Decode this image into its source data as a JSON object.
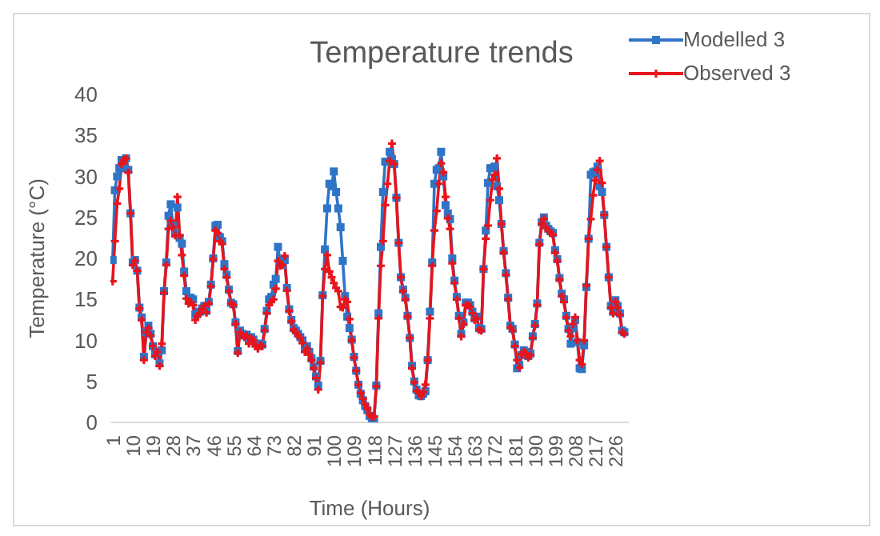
{
  "chart_data": {
    "type": "line",
    "title": "Temperature trends",
    "xlabel": "Time (Hours)",
    "ylabel": "Temperature (°C)",
    "x": [
      1,
      2,
      3,
      4,
      5,
      6,
      7,
      8,
      9,
      10,
      11,
      12,
      13,
      14,
      15,
      16,
      17,
      18,
      19,
      20,
      21,
      22,
      23,
      24,
      25,
      26,
      27,
      28,
      29,
      30,
      31,
      32,
      33,
      34,
      35,
      36,
      37,
      38,
      39,
      40,
      41,
      42,
      43,
      44,
      45,
      46,
      47,
      48,
      49,
      50,
      51,
      52,
      53,
      54,
      55,
      56,
      57,
      58,
      59,
      60,
      61,
      62,
      63,
      64,
      65,
      66,
      67,
      68,
      69,
      70,
      71,
      72,
      73,
      74,
      75,
      76,
      77,
      78,
      79,
      80,
      81,
      82,
      83,
      84,
      85,
      86,
      87,
      88,
      89,
      90,
      91,
      92,
      93,
      94,
      95,
      96,
      97,
      98,
      99,
      100,
      101,
      102,
      103,
      104,
      105,
      106,
      107,
      108,
      109,
      110,
      111,
      112,
      113,
      114,
      115,
      116,
      117,
      118,
      119,
      120,
      121,
      122,
      123,
      124,
      125,
      126,
      127,
      128,
      129,
      130,
      131,
      132,
      133,
      134,
      135,
      136,
      137,
      138,
      139,
      140,
      141,
      142,
      143,
      144,
      145,
      146,
      147,
      148,
      149,
      150,
      151,
      152,
      153,
      154,
      155,
      156,
      157,
      158,
      159,
      160,
      161,
      162,
      163,
      164,
      165,
      166,
      167,
      168,
      169,
      170,
      171,
      172,
      173,
      174,
      175,
      176,
      177,
      178,
      179,
      180,
      181,
      182,
      183,
      184,
      185,
      186,
      187,
      188,
      189,
      190,
      191,
      192,
      193,
      194,
      195,
      196,
      197,
      198,
      199,
      200,
      201,
      202,
      203,
      204,
      205,
      206,
      207,
      208,
      209,
      210,
      211,
      212,
      213,
      214,
      215,
      216,
      217,
      218,
      219,
      220,
      221,
      222,
      223,
      224,
      225,
      226,
      227,
      228,
      229,
      230
    ],
    "series": [
      {
        "name": "Modelled 3",
        "color": "#2e75c8",
        "marker": "square",
        "values": [
          19.8,
          28.3,
          30,
          31,
          32,
          31,
          32.2,
          30.8,
          25.5,
          19.5,
          19.8,
          18.5,
          14,
          12.8,
          8,
          11,
          11.8,
          10.8,
          9.3,
          8.3,
          8.6,
          7.2,
          8.8,
          16,
          19.5,
          25.2,
          26.6,
          24,
          23,
          26.2,
          22.5,
          21.8,
          18.4,
          16,
          15.2,
          15.2,
          15,
          13.2,
          13.2,
          13.5,
          13.9,
          14.2,
          13.6,
          14.7,
          16.8,
          20,
          24,
          24.1,
          22.6,
          22.1,
          19.3,
          18,
          16.2,
          14.6,
          14.4,
          12.2,
          8.7,
          11.2,
          10.8,
          10.6,
          10.7,
          10,
          10.4,
          10.1,
          9.6,
          9.3,
          9.6,
          9.5,
          11.4,
          13.6,
          15,
          15.3,
          16.8,
          17.5,
          21.4,
          19.5,
          19.2,
          19.8,
          16.4,
          13.8,
          12.5,
          11.5,
          11.2,
          10.8,
          10.4,
          10,
          9,
          9.3,
          8.6,
          7.8,
          6.8,
          5.6,
          4.5,
          7.5,
          15.5,
          21.1,
          26.1,
          29.1,
          28.8,
          30.6,
          28.1,
          26.1,
          23.8,
          19.7,
          15.4,
          12.9,
          11.5,
          10.1,
          8,
          6.3,
          4.6,
          3.5,
          2.7,
          2,
          1.5,
          0.8,
          0.5,
          0.4,
          4.5,
          13.3,
          21.4,
          28.1,
          31.8,
          31.8,
          33,
          32.1,
          31.5,
          27.4,
          21.9,
          17.7,
          16.2,
          15.2,
          13,
          10.3,
          6.9,
          5,
          4,
          3.3,
          3.2,
          3.5,
          3.8,
          7.6,
          13.5,
          19.5,
          29.1,
          30.8,
          31,
          33,
          30,
          26.5,
          25.5,
          24.8,
          20,
          17.3,
          15.3,
          13,
          10.8,
          12.2,
          14.6,
          14.6,
          14.3,
          13.5,
          12.7,
          12.9,
          11.5,
          11.4,
          18.7,
          23.4,
          29.2,
          31,
          31,
          31.2,
          28.8,
          27.1,
          24.2,
          20.9,
          18.2,
          15.2,
          11.8,
          11.4,
          9.5,
          6.6,
          7,
          8.2,
          8.8,
          8.6,
          8.1,
          8.4,
          10.5,
          12,
          14.5,
          21.9,
          24.4,
          25,
          24,
          23.6,
          23.3,
          23.1,
          21,
          19.9,
          17.6,
          15.7,
          15,
          13,
          11.4,
          9.6,
          11.5,
          12.5,
          9.8,
          6.6,
          6.5,
          9.4,
          16.5,
          22.4,
          30.2,
          30.5,
          30.6,
          31.2,
          28.8,
          28.1,
          25.3,
          21.4,
          17.7,
          14.2,
          13.5,
          14.9,
          14.2,
          13.3,
          11.2,
          11
        ]
      },
      {
        "name": "Observed 3",
        "color": "#e8141c",
        "marker": "cross",
        "values": [
          17.2,
          22.1,
          26.7,
          28.5,
          31.5,
          32,
          32.2,
          30.5,
          25.5,
          19.2,
          19.7,
          18.5,
          13.9,
          12.5,
          7.6,
          11,
          11.5,
          10.6,
          9.3,
          8.1,
          8.6,
          6.9,
          9.6,
          15.8,
          19.2,
          23.6,
          24.6,
          23.8,
          22.8,
          27.5,
          22.8,
          20.4,
          17.9,
          15.1,
          14.5,
          14.7,
          14.3,
          12.5,
          13,
          13.3,
          13.8,
          14.2,
          13.4,
          14.5,
          16.6,
          19.9,
          23.4,
          23.1,
          22.1,
          21.8,
          18.7,
          17.7,
          16,
          14.5,
          14.3,
          12,
          8.5,
          11,
          10.6,
          10.4,
          10.6,
          9.6,
          10.2,
          10,
          9.3,
          9,
          9.4,
          9.3,
          11.2,
          13.3,
          14.3,
          14.7,
          15,
          16.3,
          19.7,
          19.1,
          19.2,
          20.3,
          16.1,
          13.6,
          12.3,
          11.3,
          11,
          10.6,
          10.3,
          9.7,
          8.6,
          9,
          8.3,
          7.6,
          6.6,
          5.4,
          4,
          7.3,
          15.4,
          18.7,
          20.4,
          18.4,
          17.7,
          17,
          16.4,
          16,
          14.1,
          14,
          15,
          14.7,
          12.6,
          10,
          7.9,
          6.3,
          4.6,
          3.6,
          2.9,
          2.2,
          1.7,
          1,
          0.7,
          0.7,
          4.4,
          12.7,
          19.1,
          22.1,
          26.5,
          29.1,
          31.9,
          34,
          31.5,
          27.4,
          21.9,
          17.7,
          16,
          15,
          12.9,
          10.3,
          6.6,
          4.9,
          3.9,
          3.6,
          3.2,
          3.7,
          4.6,
          7.6,
          12.7,
          19.1,
          23.4,
          25.8,
          29.1,
          31.6,
          30.5,
          27.5,
          24.9,
          23.6,
          19.4,
          17,
          15,
          12.7,
          10.5,
          12,
          14.3,
          14.3,
          14.1,
          13.3,
          12.5,
          12.7,
          11.3,
          11.2,
          18.7,
          22.4,
          24,
          27.1,
          29.6,
          30.2,
          32.2,
          28.5,
          24.2,
          20.7,
          18,
          15,
          11.6,
          11.2,
          9.3,
          7.6,
          6.7,
          8.3,
          8.6,
          8.4,
          7.9,
          8.2,
          10.3,
          11.8,
          14.3,
          21.7,
          24.2,
          24.8,
          23.8,
          23.4,
          23.1,
          22.9,
          20.7,
          19.7,
          17.4,
          15.4,
          14.7,
          12.8,
          11.2,
          10.5,
          12,
          12.8,
          10,
          7.6,
          7.1,
          10,
          16.7,
          22.4,
          24.8,
          27.7,
          29.5,
          30.8,
          31.9,
          29.2,
          25.3,
          21.4,
          17.7,
          14,
          13.3,
          14.7,
          14,
          13.1,
          11,
          10.8
        ]
      }
    ],
    "xlim": [
      0,
      232
    ],
    "xticks": [
      1,
      10,
      19,
      28,
      37,
      46,
      55,
      64,
      73,
      82,
      91,
      100,
      109,
      118,
      127,
      136,
      145,
      154,
      163,
      172,
      181,
      190,
      199,
      208,
      217,
      226
    ],
    "ylim": [
      0,
      40
    ],
    "yticks": [
      0,
      5,
      10,
      15,
      20,
      25,
      30,
      35,
      40
    ],
    "grid": false,
    "legend": "top right"
  }
}
